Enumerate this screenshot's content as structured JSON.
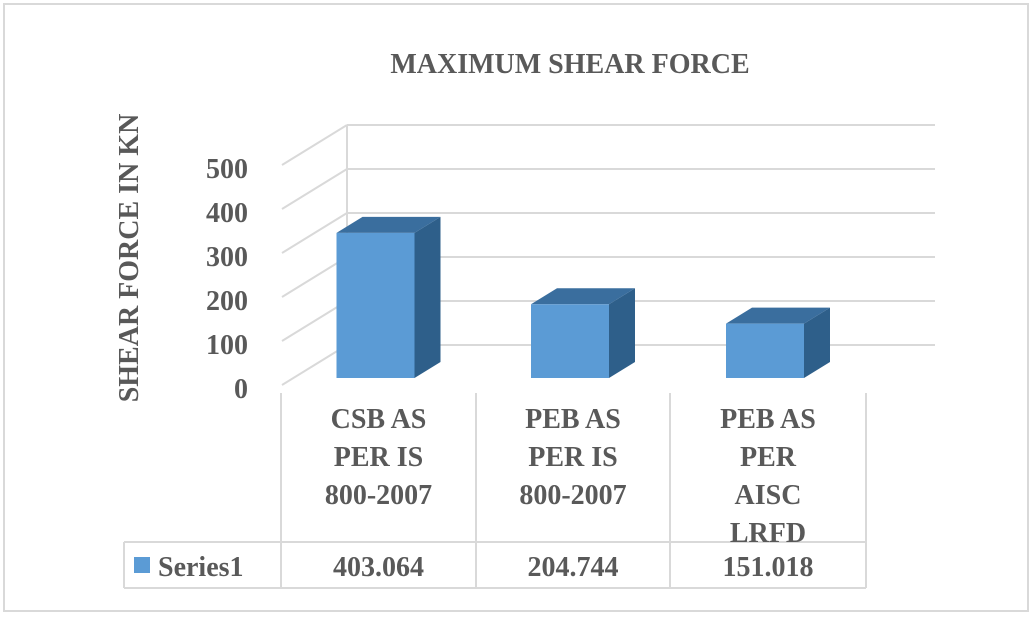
{
  "chart_data": {
    "type": "bar",
    "title": "MAXIMUM SHEAR FORCE",
    "ylabel": "SHEAR FORCE IN KN",
    "xlabel": "",
    "ylim": [
      0,
      500
    ],
    "yticks": [
      0,
      100,
      200,
      300,
      400,
      500
    ],
    "categories": [
      [
        "CSB AS",
        "PER IS",
        "800-2007"
      ],
      [
        "PEB AS",
        "PER IS",
        "800-2007"
      ],
      [
        "PEB AS",
        "PER",
        "AISC",
        "LRFD"
      ]
    ],
    "series": [
      {
        "name": "Series1",
        "values": [
          403.064,
          204.744,
          151.018
        ],
        "labels": [
          "403.064",
          "204.744",
          "151.018"
        ]
      }
    ],
    "grid": true,
    "legend": "data-table",
    "colors": {
      "front": "#5b9bd5",
      "side": "#2e5f8a",
      "top": "#3a6e9e",
      "grid": "#d9d9d9",
      "text": "#595959"
    },
    "style": "3d-column"
  }
}
